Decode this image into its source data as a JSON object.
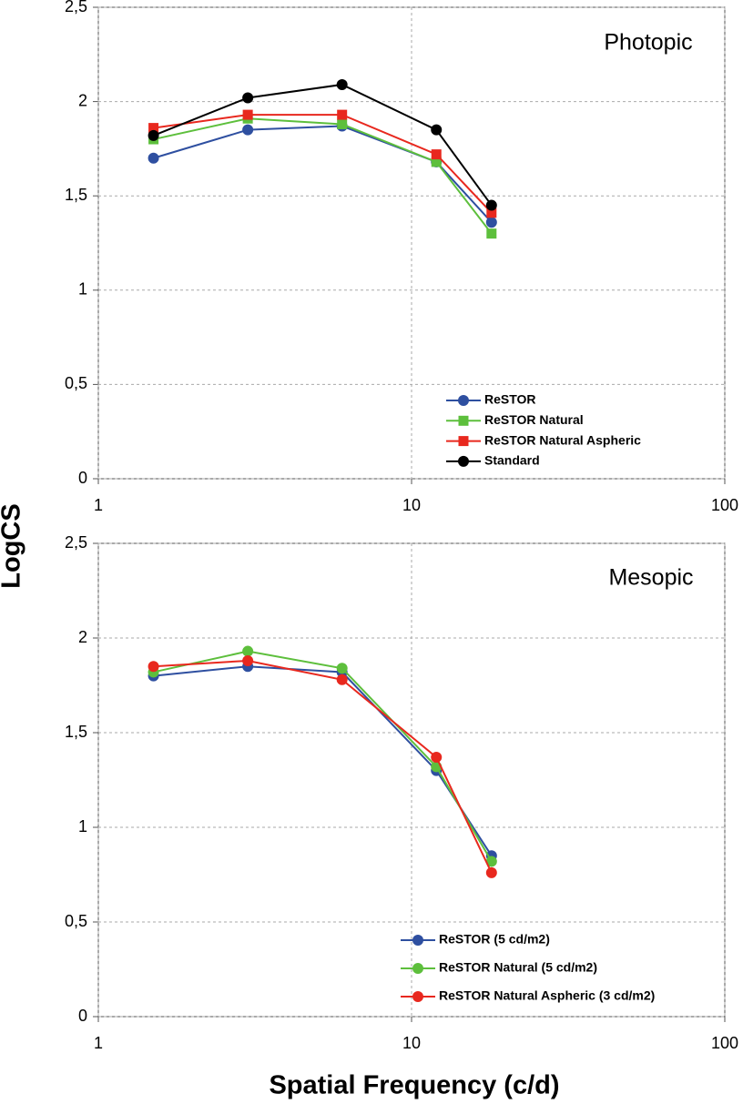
{
  "ylabel": "LogCS",
  "xlabel": "Spatial Frequency (c/d)",
  "chart_data": [
    {
      "type": "line",
      "title": "Photopic",
      "xscale": "log",
      "grid": true,
      "legend": "lower right",
      "x": [
        1.5,
        3,
        6,
        12,
        18
      ],
      "xlim": [
        1,
        100
      ],
      "xticks": [
        1,
        10,
        100
      ],
      "ylim": [
        0,
        2.5
      ],
      "yticks": [
        0,
        {
          "value": 0.5,
          "label": "0,5"
        },
        1,
        {
          "value": 1.5,
          "label": "1,5"
        },
        2,
        {
          "value": 2.5,
          "label": "2,5"
        }
      ],
      "series": [
        {
          "name": "ReSTOR",
          "color": "#2e4fa0",
          "marker": "circle",
          "values": [
            1.7,
            1.85,
            1.87,
            1.68,
            1.36
          ]
        },
        {
          "name": "ReSTOR Natural",
          "color": "#5dbf3c",
          "marker": "square",
          "values": [
            1.8,
            1.91,
            1.88,
            1.68,
            1.3
          ]
        },
        {
          "name": "ReSTOR Natural Aspheric",
          "color": "#e8281e",
          "marker": "square",
          "values": [
            1.86,
            1.93,
            1.93,
            1.72,
            1.41
          ]
        },
        {
          "name": "Standard",
          "color": "#000000",
          "marker": "circle",
          "values": [
            1.82,
            2.02,
            2.09,
            1.85,
            1.45
          ]
        }
      ]
    },
    {
      "type": "line",
      "title": "Mesopic",
      "xscale": "log",
      "grid": true,
      "legend": "lower right",
      "x": [
        1.5,
        3,
        6,
        12,
        18
      ],
      "xlim": [
        1,
        100
      ],
      "xticks": [
        1,
        10,
        100
      ],
      "ylim": [
        0,
        2.5
      ],
      "yticks": [
        0,
        {
          "value": 0.5,
          "label": "0,5"
        },
        1,
        {
          "value": 1.5,
          "label": "1,5"
        },
        2,
        {
          "value": 2.5,
          "label": "2,5"
        }
      ],
      "series": [
        {
          "name": "ReSTOR (5 cd/m2)",
          "color": "#2e4fa0",
          "marker": "circle",
          "values": [
            1.8,
            1.85,
            1.82,
            1.3,
            0.85
          ]
        },
        {
          "name": "ReSTOR Natural (5 cd/m2)",
          "color": "#5dbf3c",
          "marker": "circle",
          "values": [
            1.82,
            1.93,
            1.84,
            1.32,
            0.82
          ]
        },
        {
          "name": "ReSTOR Natural Aspheric (3 cd/m2)",
          "color": "#e8281e",
          "marker": "circle",
          "values": [
            1.85,
            1.88,
            1.78,
            1.37,
            0.76
          ]
        }
      ]
    }
  ]
}
